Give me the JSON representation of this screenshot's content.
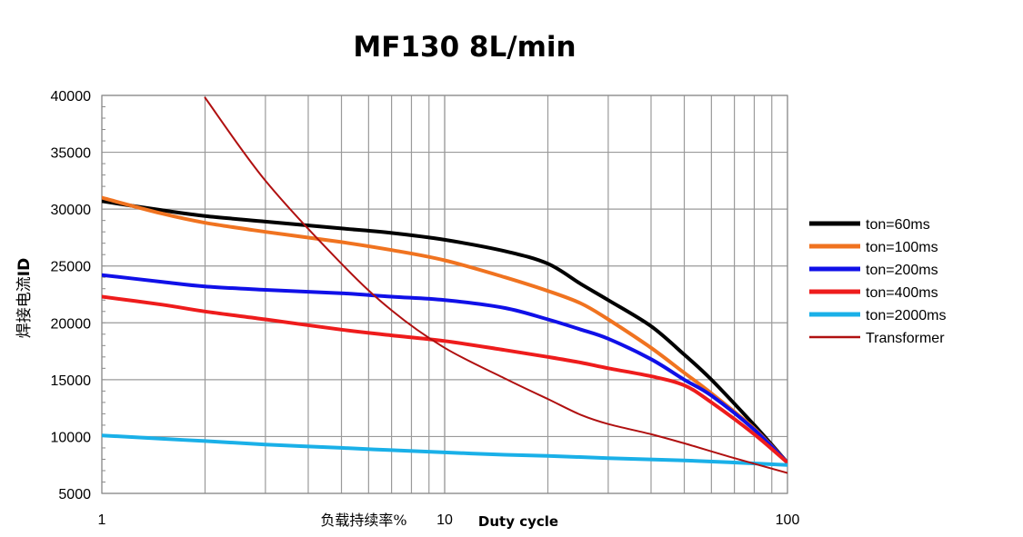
{
  "chart_data": {
    "type": "line",
    "title": "MF130 8L/min",
    "ylabel": "焊接电流",
    "ylabel_sub": "ID",
    "xlabel": "负载持续率%",
    "xlabel_en": "Duty cycle",
    "x_scale": "log",
    "xlim": [
      1,
      100
    ],
    "ylim": [
      5000,
      40000
    ],
    "x_ticks": [
      1,
      10,
      100
    ],
    "x_tick_labels": [
      "1",
      "10",
      "100"
    ],
    "y_ticks": [
      5000,
      10000,
      15000,
      20000,
      25000,
      30000,
      35000,
      40000
    ],
    "y_tick_labels": [
      "5000",
      "10000",
      "15000",
      "20000",
      "25000",
      "30000",
      "35000",
      "40000"
    ],
    "grid": true,
    "legend_position": "right",
    "series": [
      {
        "name": "ton=60ms",
        "color": "#000000",
        "width": 4,
        "x": [
          1,
          1.5,
          2,
          3,
          5,
          7,
          10,
          15,
          20,
          25,
          30,
          40,
          50,
          60,
          80,
          100
        ],
        "y": [
          30700,
          29900,
          29400,
          28900,
          28300,
          27900,
          27300,
          26300,
          25200,
          23400,
          22000,
          19700,
          17200,
          15000,
          11000,
          7700
        ]
      },
      {
        "name": "ton=100ms",
        "color": "#f07320",
        "width": 4,
        "x": [
          1,
          1.5,
          2,
          3,
          5,
          7,
          10,
          15,
          20,
          25,
          30,
          40,
          50,
          60,
          80,
          100
        ],
        "y": [
          31000,
          29600,
          28800,
          28000,
          27100,
          26400,
          25500,
          24000,
          22800,
          21700,
          20300,
          17800,
          15600,
          13800,
          10700,
          7700
        ]
      },
      {
        "name": "ton=200ms",
        "color": "#1010e8",
        "width": 4,
        "x": [
          1,
          1.5,
          2,
          3,
          5,
          7,
          10,
          15,
          20,
          25,
          30,
          40,
          50,
          60,
          80,
          100
        ],
        "y": [
          24200,
          23600,
          23200,
          22900,
          22600,
          22300,
          22000,
          21300,
          20300,
          19400,
          18600,
          16800,
          15000,
          13600,
          10600,
          7700
        ]
      },
      {
        "name": "ton=400ms",
        "color": "#ee1c1c",
        "width": 4,
        "x": [
          1,
          1.5,
          2,
          3,
          5,
          7,
          10,
          15,
          20,
          25,
          30,
          40,
          50,
          60,
          80,
          100
        ],
        "y": [
          22300,
          21600,
          21000,
          20300,
          19400,
          18900,
          18400,
          17600,
          17000,
          16500,
          16000,
          15300,
          14500,
          13000,
          10200,
          7700
        ]
      },
      {
        "name": "ton=2000ms",
        "color": "#1ab0e8",
        "width": 4,
        "x": [
          1,
          1.5,
          2,
          3,
          5,
          7,
          10,
          15,
          20,
          30,
          50,
          100
        ],
        "y": [
          10100,
          9800,
          9600,
          9300,
          9000,
          8800,
          8600,
          8400,
          8300,
          8100,
          7900,
          7500
        ]
      },
      {
        "name": "Transformer",
        "color": "#b01010",
        "width": 2,
        "x": [
          2,
          3,
          5,
          7,
          10,
          15,
          20,
          25,
          30,
          40,
          50,
          70,
          100
        ],
        "y": [
          39800,
          32500,
          25200,
          21100,
          17800,
          15100,
          13300,
          11900,
          11100,
          10200,
          9400,
          8100,
          6800
        ]
      }
    ]
  }
}
